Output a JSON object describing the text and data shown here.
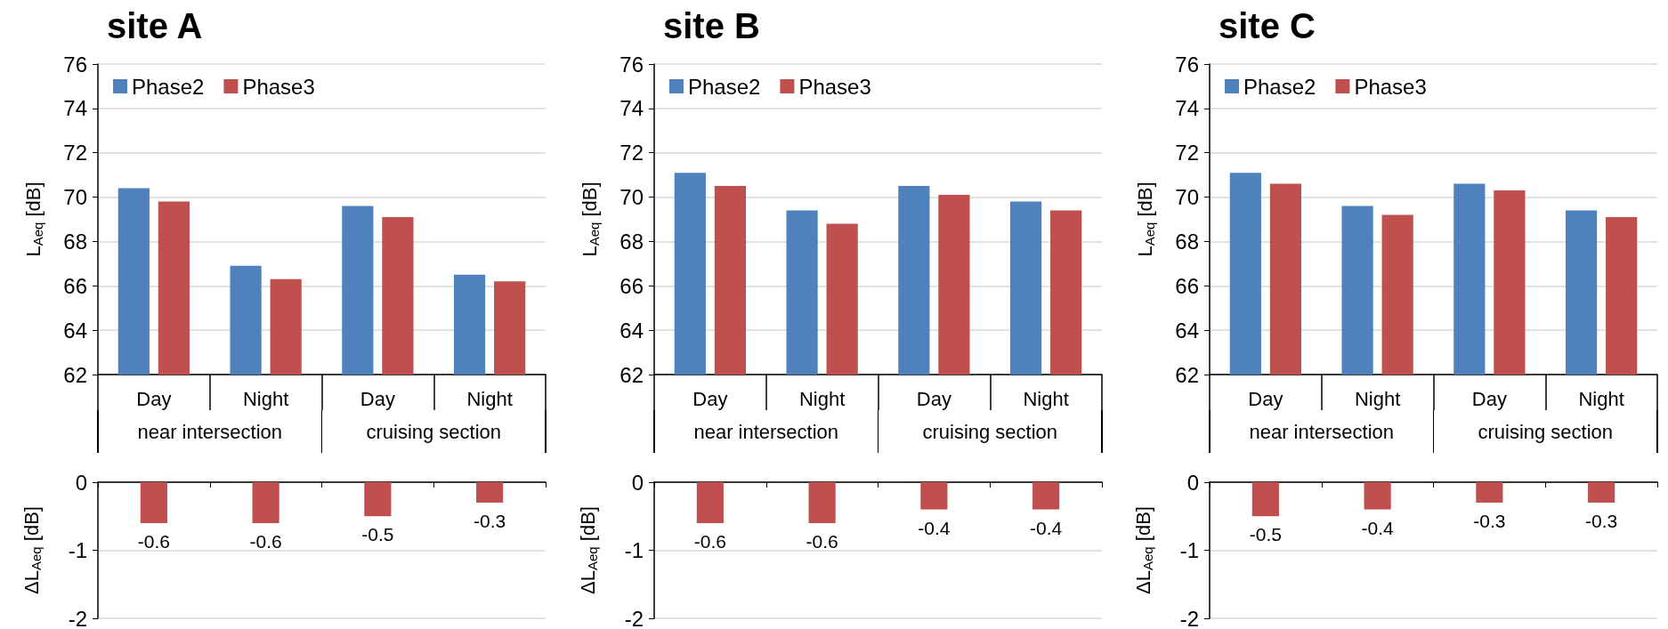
{
  "chart_data": [
    {
      "type": "bar",
      "title": "site A",
      "ylabel": "L$_{Aeq}$ [dB]",
      "categories": [
        "Day",
        "Night",
        "Day",
        "Night"
      ],
      "annotations": [
        "near intersection",
        "cruising section"
      ],
      "series": [
        {
          "name": "Phase2",
          "color": "#4f81bd",
          "values": [
            70.4,
            66.9,
            69.6,
            66.5
          ]
        },
        {
          "name": "Phase3",
          "color": "#c0504d",
          "values": [
            69.8,
            66.3,
            69.1,
            66.2
          ]
        }
      ],
      "ylim": [
        62,
        76
      ],
      "yticks": [
        62,
        64,
        66,
        68,
        70,
        72,
        74,
        76
      ],
      "grid": "y",
      "legend": "top left"
    },
    {
      "type": "bar",
      "ylabel": "ΔL$_{Aeq}$ [dB]",
      "categories": [
        null,
        null,
        null,
        null
      ],
      "values": [
        -0.6,
        -0.6,
        -0.5,
        -0.3
      ],
      "color": "#c0504d",
      "ylim": [
        -2,
        0
      ],
      "yticks": [
        -2,
        -1,
        0
      ],
      "grid": "y",
      "tick_labels": "y",
      "data_labels": true
    },
    {
      "type": "bar",
      "title": "site B",
      "ylabel": "L$_{Aeq}$ [dB]",
      "categories": [
        "Day",
        "Night",
        "Day",
        "Night"
      ],
      "annotations": [
        "near intersection",
        "cruising section"
      ],
      "series": [
        {
          "name": "Phase2",
          "color": "#4f81bd",
          "values": [
            71.1,
            69.4,
            70.5,
            69.8
          ]
        },
        {
          "name": "Phase3",
          "color": "#c0504d",
          "values": [
            70.5,
            68.8,
            70.1,
            69.4
          ]
        }
      ],
      "ylim": [
        62,
        76
      ],
      "yticks": [
        62,
        64,
        66,
        68,
        70,
        72,
        74,
        76
      ],
      "grid": "y",
      "legend": "top left"
    },
    {
      "type": "bar",
      "ylabel": "ΔL$_{Aeq}$ [dB]",
      "categories": [
        null,
        null,
        null,
        null
      ],
      "values": [
        -0.6,
        -0.6,
        -0.4,
        -0.4
      ],
      "color": "#c0504d",
      "ylim": [
        -2,
        0
      ],
      "yticks": [
        -2,
        -1,
        0
      ],
      "grid": "y",
      "tick_labels": "y",
      "data_labels": true
    },
    {
      "type": "bar",
      "title": "site C",
      "ylabel": "L$_{Aeq}$ [dB]",
      "categories": [
        "Day",
        "Night",
        "Day",
        "Night"
      ],
      "annotations": [
        "near intersection",
        "cruising section"
      ],
      "series": [
        {
          "name": "Phase2",
          "color": "#4f81bd",
          "values": [
            71.1,
            69.6,
            70.6,
            69.4
          ]
        },
        {
          "name": "Phase3",
          "color": "#c0504d",
          "values": [
            70.6,
            69.2,
            70.3,
            69.1
          ]
        }
      ],
      "ylim": [
        62,
        76
      ],
      "yticks": [
        62,
        64,
        66,
        68,
        70,
        72,
        74,
        76
      ],
      "grid": "y",
      "legend": "top left"
    },
    {
      "type": "bar",
      "ylabel": "ΔL$_{Aeq}$ [dB]",
      "categories": [
        null,
        null,
        null,
        null
      ],
      "values": [
        -0.5,
        -0.4,
        -0.3,
        -0.3
      ],
      "color": "#c0504d",
      "ylim": [
        -2,
        0
      ],
      "yticks": [
        -2,
        -1,
        0
      ],
      "grid": "y",
      "tick_labels": "y",
      "data_labels": true
    }
  ]
}
